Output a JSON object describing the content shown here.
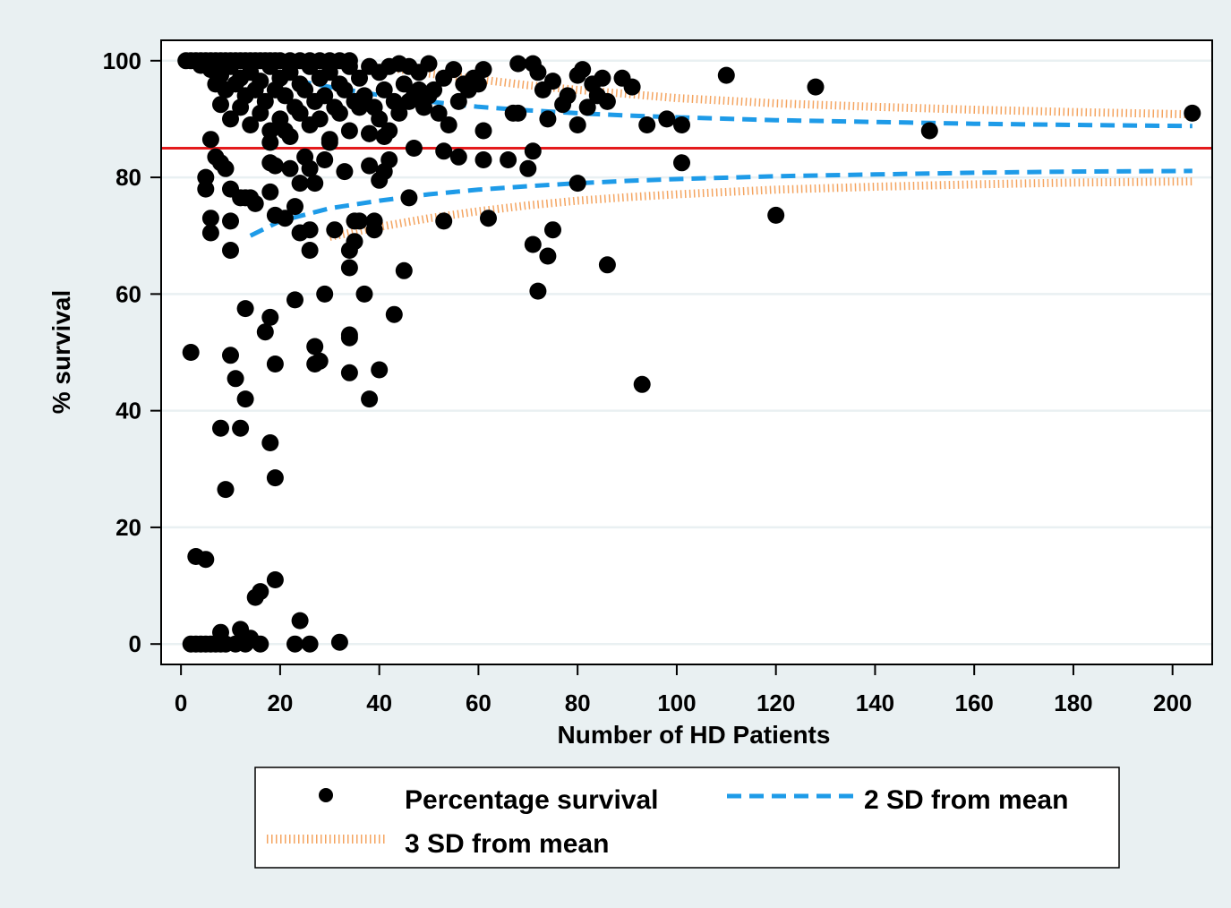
{
  "chart_data": {
    "type": "scatter",
    "xlabel": "Number of HD Patients",
    "ylabel": "% survival",
    "xlim": [
      -4,
      208
    ],
    "ylim": [
      -3.5,
      103.5
    ],
    "xticks": [
      0,
      20,
      40,
      60,
      80,
      100,
      120,
      140,
      160,
      180,
      200
    ],
    "yticks": [
      0,
      20,
      40,
      60,
      80,
      100
    ],
    "grid": "horizontal",
    "legend_position": "bottom",
    "mean_line": {
      "y": 85,
      "color": "#e41a1c"
    },
    "series": [
      {
        "name": "Percentage survival",
        "kind": "scatter",
        "color": "#000000",
        "points": [
          [
            1,
            100
          ],
          [
            2,
            100
          ],
          [
            3,
            100
          ],
          [
            4,
            100
          ],
          [
            5,
            100
          ],
          [
            6,
            100
          ],
          [
            7,
            100
          ],
          [
            8,
            100
          ],
          [
            9,
            100
          ],
          [
            10,
            100
          ],
          [
            11,
            100
          ],
          [
            12,
            100
          ],
          [
            13,
            100
          ],
          [
            14,
            100
          ],
          [
            15,
            100
          ],
          [
            16,
            100
          ],
          [
            17,
            100
          ],
          [
            18,
            100
          ],
          [
            19,
            100
          ],
          [
            20,
            100
          ],
          [
            22,
            100
          ],
          [
            24,
            100
          ],
          [
            26,
            100
          ],
          [
            28,
            100
          ],
          [
            30,
            100
          ],
          [
            32,
            100
          ],
          [
            34,
            100
          ],
          [
            4,
            99.2
          ],
          [
            6,
            98.5
          ],
          [
            8,
            97.5
          ],
          [
            10,
            99
          ],
          [
            12,
            97
          ],
          [
            14,
            98
          ],
          [
            16,
            96.5
          ],
          [
            18,
            99
          ],
          [
            20,
            97
          ],
          [
            22,
            98
          ],
          [
            24,
            96
          ],
          [
            26,
            99
          ],
          [
            28,
            97
          ],
          [
            30,
            98
          ],
          [
            32,
            96
          ],
          [
            34,
            99
          ],
          [
            36,
            97
          ],
          [
            38,
            99
          ],
          [
            40,
            98
          ],
          [
            42,
            99
          ],
          [
            44,
            99.5
          ],
          [
            46,
            99
          ],
          [
            48,
            98
          ],
          [
            50,
            99.5
          ],
          [
            7,
            96
          ],
          [
            9,
            95
          ],
          [
            11,
            96
          ],
          [
            13,
            94
          ],
          [
            15,
            95
          ],
          [
            17,
            93
          ],
          [
            19,
            95
          ],
          [
            21,
            94
          ],
          [
            23,
            92
          ],
          [
            25,
            95
          ],
          [
            27,
            93
          ],
          [
            29,
            94
          ],
          [
            31,
            92
          ],
          [
            33,
            95
          ],
          [
            35,
            93
          ],
          [
            37,
            94
          ],
          [
            39,
            92
          ],
          [
            41,
            95
          ],
          [
            43,
            93
          ],
          [
            45,
            96
          ],
          [
            47,
            94
          ],
          [
            49,
            92
          ],
          [
            51,
            95
          ],
          [
            53,
            97
          ],
          [
            55,
            98.5
          ],
          [
            57,
            96
          ],
          [
            59,
            97
          ],
          [
            61,
            98.5
          ],
          [
            8,
            92.5
          ],
          [
            10,
            90
          ],
          [
            12,
            92
          ],
          [
            14,
            89
          ],
          [
            16,
            91
          ],
          [
            18,
            88
          ],
          [
            20,
            90
          ],
          [
            22,
            87
          ],
          [
            24,
            91
          ],
          [
            26,
            89
          ],
          [
            28,
            90
          ],
          [
            30,
            86.5
          ],
          [
            32,
            91
          ],
          [
            34,
            88
          ],
          [
            36,
            92
          ],
          [
            38,
            87.5
          ],
          [
            40,
            90
          ],
          [
            42,
            88
          ],
          [
            44,
            91
          ],
          [
            46,
            93
          ],
          [
            48,
            95
          ],
          [
            50,
            94
          ],
          [
            52,
            91
          ],
          [
            54,
            89
          ],
          [
            56,
            93
          ],
          [
            58,
            95
          ],
          [
            60,
            96
          ],
          [
            6,
            86.5
          ],
          [
            18,
            86
          ],
          [
            21,
            88
          ],
          [
            30,
            86
          ],
          [
            38,
            87.5
          ],
          [
            41,
            87
          ],
          [
            47,
            85
          ],
          [
            53,
            84.5
          ],
          [
            56,
            83.5
          ],
          [
            61,
            88
          ],
          [
            61,
            83
          ],
          [
            66,
            83
          ],
          [
            70,
            81.5
          ],
          [
            71,
            84.5
          ],
          [
            5,
            80
          ],
          [
            5,
            78
          ],
          [
            7,
            83.5
          ],
          [
            8,
            82.5
          ],
          [
            9,
            81.5
          ],
          [
            10,
            78
          ],
          [
            12,
            76.5
          ],
          [
            14,
            76.5
          ],
          [
            15,
            75.5
          ],
          [
            18,
            77.5
          ],
          [
            18,
            82.5
          ],
          [
            19,
            82
          ],
          [
            21,
            73
          ],
          [
            22,
            81.5
          ],
          [
            23,
            75
          ],
          [
            24,
            79
          ],
          [
            25,
            83.5
          ],
          [
            26,
            81.5
          ],
          [
            27,
            79
          ],
          [
            29,
            83
          ],
          [
            31,
            71
          ],
          [
            33,
            81
          ],
          [
            35,
            69
          ],
          [
            36,
            72.5
          ],
          [
            38,
            82
          ],
          [
            40,
            79.5
          ],
          [
            41,
            81
          ],
          [
            42,
            83
          ],
          [
            46,
            76.5
          ],
          [
            6,
            73
          ],
          [
            6,
            70.5
          ],
          [
            10,
            67.5
          ],
          [
            10,
            72.5
          ],
          [
            13,
            76.5
          ],
          [
            19,
            73.5
          ],
          [
            24,
            70.5
          ],
          [
            26,
            67.5
          ],
          [
            26,
            71
          ],
          [
            34,
            67.5
          ],
          [
            35,
            72.5
          ],
          [
            39,
            72.5
          ],
          [
            39,
            71
          ],
          [
            68,
            99.5
          ],
          [
            71,
            99.5
          ],
          [
            72,
            98
          ],
          [
            73,
            95
          ],
          [
            75,
            96.5
          ],
          [
            78,
            94
          ],
          [
            80,
            97.5
          ],
          [
            81,
            98.5
          ],
          [
            83,
            96
          ],
          [
            84,
            94
          ],
          [
            85,
            97
          ],
          [
            86,
            93
          ],
          [
            89,
            97
          ],
          [
            91,
            95.5
          ],
          [
            67,
            91
          ],
          [
            68,
            91
          ],
          [
            74,
            90
          ],
          [
            77,
            92.5
          ],
          [
            80,
            89
          ],
          [
            82,
            92
          ],
          [
            94,
            89
          ],
          [
            98,
            90
          ],
          [
            101,
            89
          ],
          [
            101,
            82.5
          ],
          [
            110,
            97.5
          ],
          [
            128,
            95.5
          ],
          [
            151,
            88
          ],
          [
            204,
            91
          ],
          [
            80,
            79
          ],
          [
            120,
            73.5
          ],
          [
            62,
            73
          ],
          [
            53,
            72.5
          ],
          [
            71,
            68.5
          ],
          [
            75,
            71
          ],
          [
            74,
            66.5
          ],
          [
            86,
            65
          ],
          [
            72,
            60.5
          ],
          [
            45,
            64
          ],
          [
            34,
            64.5
          ],
          [
            2,
            50
          ],
          [
            10,
            49.5
          ],
          [
            11,
            45.5
          ],
          [
            13,
            42
          ],
          [
            13,
            57.5
          ],
          [
            17,
            53.5
          ],
          [
            18,
            56
          ],
          [
            19,
            48
          ],
          [
            23,
            59
          ],
          [
            27,
            51
          ],
          [
            28,
            48.5
          ],
          [
            27,
            48
          ],
          [
            29,
            60
          ],
          [
            34,
            52.5
          ],
          [
            34,
            53
          ],
          [
            34,
            46.5
          ],
          [
            37,
            60
          ],
          [
            38,
            42
          ],
          [
            40,
            47
          ],
          [
            43,
            56.5
          ],
          [
            93,
            44.5
          ],
          [
            8,
            37
          ],
          [
            12,
            37
          ],
          [
            18,
            34.5
          ],
          [
            19,
            28.5
          ],
          [
            9,
            26.5
          ],
          [
            3,
            15
          ],
          [
            5,
            14.5
          ],
          [
            15,
            8
          ],
          [
            16,
            9
          ],
          [
            19,
            11
          ],
          [
            24,
            4
          ],
          [
            12,
            2.5
          ],
          [
            14,
            1
          ],
          [
            8,
            2
          ],
          [
            2,
            0
          ],
          [
            3,
            0
          ],
          [
            4,
            0
          ],
          [
            5,
            0
          ],
          [
            6,
            0
          ],
          [
            7,
            0
          ],
          [
            8,
            0
          ],
          [
            9,
            0
          ],
          [
            11,
            0
          ],
          [
            13,
            0
          ],
          [
            16,
            0
          ],
          [
            23,
            0
          ],
          [
            26,
            0
          ],
          [
            32,
            0.3
          ]
        ]
      },
      {
        "name": "2 SD from mean",
        "kind": "line",
        "color": "#1e9be8",
        "upper": [
          [
            19,
            97.5
          ],
          [
            25,
            96.3
          ],
          [
            30,
            95.5
          ],
          [
            40,
            94.1
          ],
          [
            50,
            93
          ],
          [
            60,
            92.1
          ],
          [
            70,
            91.5
          ],
          [
            80,
            91
          ],
          [
            90,
            90.6
          ],
          [
            100,
            90.3
          ],
          [
            120,
            89.8
          ],
          [
            140,
            89.5
          ],
          [
            160,
            89.2
          ],
          [
            180,
            89
          ],
          [
            204,
            88.8
          ]
        ],
        "lower": [
          [
            14,
            70
          ],
          [
            20,
            72.5
          ],
          [
            30,
            74.7
          ],
          [
            40,
            76
          ],
          [
            50,
            77.1
          ],
          [
            60,
            77.9
          ],
          [
            70,
            78.5
          ],
          [
            80,
            79
          ],
          [
            90,
            79.4
          ],
          [
            100,
            79.7
          ],
          [
            120,
            80.2
          ],
          [
            140,
            80.5
          ],
          [
            160,
            80.8
          ],
          [
            180,
            81
          ],
          [
            204,
            81.1
          ]
        ]
      },
      {
        "name": "3 SD from mean",
        "kind": "line",
        "color": "#f4a460",
        "upper": [
          [
            42,
            98.8
          ],
          [
            50,
            97.8
          ],
          [
            60,
            96.8
          ],
          [
            70,
            95.8
          ],
          [
            80,
            95
          ],
          [
            90,
            94.3
          ],
          [
            100,
            93.6
          ],
          [
            120,
            92.7
          ],
          [
            140,
            92.1
          ],
          [
            160,
            91.6
          ],
          [
            180,
            91.2
          ],
          [
            204,
            90.8
          ]
        ],
        "lower": [
          [
            30,
            69.8
          ],
          [
            40,
            71.5
          ],
          [
            50,
            73
          ],
          [
            60,
            74.2
          ],
          [
            70,
            75.2
          ],
          [
            80,
            76
          ],
          [
            90,
            76.6
          ],
          [
            100,
            77.1
          ],
          [
            120,
            77.9
          ],
          [
            140,
            78.4
          ],
          [
            160,
            78.8
          ],
          [
            180,
            79.1
          ],
          [
            204,
            79.3
          ]
        ]
      }
    ]
  },
  "legend": {
    "items": [
      {
        "label": "Percentage survival"
      },
      {
        "label": "2 SD from mean"
      },
      {
        "label": "3 SD from mean"
      }
    ]
  }
}
